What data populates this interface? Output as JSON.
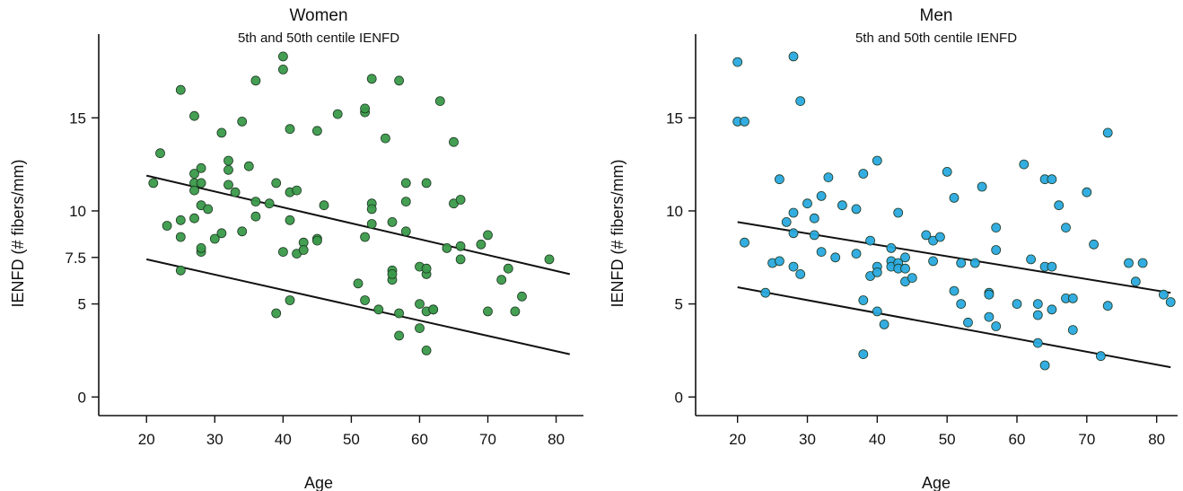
{
  "chart_data": [
    {
      "type": "scatter",
      "title": "Women",
      "subtitle": "5th and 50th centile IENFD",
      "xlabel": "Age",
      "ylabel": "IENFD (# fibers/mm)",
      "xlim": [
        13,
        84
      ],
      "ylim": [
        -1,
        19.5
      ],
      "xticks": [
        20,
        30,
        40,
        50,
        60,
        70,
        80
      ],
      "yticks": [
        0,
        5,
        7.5,
        10,
        15
      ],
      "ytick_labels": [
        "0",
        "5",
        "7.5",
        "10",
        "15"
      ],
      "marker_color": "#3a9a4a",
      "grid": false,
      "points": [
        [
          21,
          11.5
        ],
        [
          22,
          13.1
        ],
        [
          23,
          9.2
        ],
        [
          25,
          9.5
        ],
        [
          25,
          8.6
        ],
        [
          25,
          16.5
        ],
        [
          25,
          6.8
        ],
        [
          27,
          15.1
        ],
        [
          27,
          12.0
        ],
        [
          27,
          11.5
        ],
        [
          27,
          9.6
        ],
        [
          27,
          11.1
        ],
        [
          28,
          7.8
        ],
        [
          28,
          8.0
        ],
        [
          28,
          12.3
        ],
        [
          28,
          11.5
        ],
        [
          28,
          10.3
        ],
        [
          29,
          10.1
        ],
        [
          30,
          8.5
        ],
        [
          31,
          8.8
        ],
        [
          31,
          14.2
        ],
        [
          32,
          12.7
        ],
        [
          32,
          12.2
        ],
        [
          32,
          11.4
        ],
        [
          33,
          11.0
        ],
        [
          34,
          8.9
        ],
        [
          34,
          14.8
        ],
        [
          35,
          12.4
        ],
        [
          36,
          9.7
        ],
        [
          36,
          10.5
        ],
        [
          36,
          17.0
        ],
        [
          38,
          10.4
        ],
        [
          39,
          4.5
        ],
        [
          39,
          11.5
        ],
        [
          40,
          18.3
        ],
        [
          40,
          17.6
        ],
        [
          40,
          7.8
        ],
        [
          41,
          14.4
        ],
        [
          41,
          11.0
        ],
        [
          41,
          9.5
        ],
        [
          41,
          5.2
        ],
        [
          42,
          11.1
        ],
        [
          42,
          7.7
        ],
        [
          43,
          8.3
        ],
        [
          43,
          7.9
        ],
        [
          45,
          8.5
        ],
        [
          45,
          8.4
        ],
        [
          45,
          14.3
        ],
        [
          46,
          10.3
        ],
        [
          48,
          15.2
        ],
        [
          51,
          6.1
        ],
        [
          52,
          15.3
        ],
        [
          52,
          15.5
        ],
        [
          52,
          8.6
        ],
        [
          52,
          5.2
        ],
        [
          53,
          17.1
        ],
        [
          53,
          10.4
        ],
        [
          53,
          10.1
        ],
        [
          53,
          9.3
        ],
        [
          54,
          4.7
        ],
        [
          55,
          13.9
        ],
        [
          56,
          9.4
        ],
        [
          56,
          6.8
        ],
        [
          56,
          6.3
        ],
        [
          56,
          6.6
        ],
        [
          57,
          3.3
        ],
        [
          57,
          4.5
        ],
        [
          57,
          17.0
        ],
        [
          58,
          8.9
        ],
        [
          58,
          11.5
        ],
        [
          58,
          10.5
        ],
        [
          60,
          3.7
        ],
        [
          60,
          5.0
        ],
        [
          60,
          7.0
        ],
        [
          61,
          2.5
        ],
        [
          61,
          6.6
        ],
        [
          61,
          11.5
        ],
        [
          61,
          6.9
        ],
        [
          61,
          4.6
        ],
        [
          62,
          4.7
        ],
        [
          62,
          4.7
        ],
        [
          63,
          15.9
        ],
        [
          64,
          8.0
        ],
        [
          65,
          13.7
        ],
        [
          65,
          10.4
        ],
        [
          66,
          10.6
        ],
        [
          66,
          8.1
        ],
        [
          66,
          7.4
        ],
        [
          69,
          8.2
        ],
        [
          70,
          8.7
        ],
        [
          70,
          4.6
        ],
        [
          72,
          6.3
        ],
        [
          73,
          6.9
        ],
        [
          74,
          4.6
        ],
        [
          75,
          5.4
        ],
        [
          79,
          7.4
        ]
      ],
      "lines": [
        {
          "name": "50th centile",
          "x": [
            20,
            82
          ],
          "y": [
            11.9,
            6.6
          ]
        },
        {
          "name": "5th centile",
          "x": [
            20,
            82
          ],
          "y": [
            7.4,
            2.3
          ]
        }
      ]
    },
    {
      "type": "scatter",
      "title": "Men",
      "subtitle": "5th and 50th centile IENFD",
      "xlabel": "Age",
      "ylabel": "IENFD (# fibers/mm)",
      "xlim": [
        14,
        83
      ],
      "ylim": [
        -1,
        19.5
      ],
      "xticks": [
        20,
        30,
        40,
        50,
        60,
        70,
        80
      ],
      "yticks": [
        0,
        5,
        10,
        15
      ],
      "ytick_labels": [
        "0",
        "5",
        "10",
        "15"
      ],
      "marker_color": "#29a9df",
      "grid": false,
      "points": [
        [
          20,
          18.0
        ],
        [
          20,
          14.8
        ],
        [
          21,
          14.8
        ],
        [
          21,
          8.3
        ],
        [
          24,
          5.6
        ],
        [
          25,
          7.2
        ],
        [
          26,
          7.3
        ],
        [
          26,
          11.7
        ],
        [
          27,
          9.4
        ],
        [
          28,
          18.3
        ],
        [
          28,
          9.9
        ],
        [
          28,
          8.8
        ],
        [
          28,
          7.0
        ],
        [
          29,
          6.6
        ],
        [
          29,
          15.9
        ],
        [
          30,
          10.4
        ],
        [
          31,
          8.7
        ],
        [
          31,
          9.6
        ],
        [
          32,
          10.8
        ],
        [
          32,
          7.8
        ],
        [
          33,
          11.8
        ],
        [
          34,
          7.5
        ],
        [
          35,
          10.3
        ],
        [
          37,
          10.1
        ],
        [
          37,
          7.7
        ],
        [
          38,
          12.0
        ],
        [
          38,
          5.2
        ],
        [
          38,
          2.3
        ],
        [
          39,
          8.4
        ],
        [
          39,
          6.5
        ],
        [
          40,
          12.7
        ],
        [
          40,
          7.0
        ],
        [
          40,
          6.7
        ],
        [
          40,
          4.6
        ],
        [
          41,
          3.9
        ],
        [
          42,
          7.3
        ],
        [
          42,
          7.0
        ],
        [
          42,
          8.0
        ],
        [
          43,
          9.9
        ],
        [
          43,
          7.2
        ],
        [
          43,
          6.9
        ],
        [
          44,
          7.5
        ],
        [
          44,
          6.2
        ],
        [
          44,
          6.9
        ],
        [
          45,
          6.4
        ],
        [
          47,
          8.7
        ],
        [
          48,
          8.4
        ],
        [
          48,
          7.3
        ],
        [
          49,
          8.6
        ],
        [
          50,
          12.1
        ],
        [
          51,
          10.7
        ],
        [
          51,
          5.7
        ],
        [
          52,
          7.2
        ],
        [
          52,
          5.0
        ],
        [
          53,
          4.0
        ],
        [
          54,
          7.2
        ],
        [
          55,
          11.3
        ],
        [
          56,
          5.6
        ],
        [
          56,
          5.5
        ],
        [
          56,
          4.3
        ],
        [
          57,
          3.8
        ],
        [
          57,
          9.1
        ],
        [
          57,
          7.9
        ],
        [
          60,
          5.0
        ],
        [
          61,
          12.5
        ],
        [
          62,
          7.4
        ],
        [
          63,
          2.9
        ],
        [
          63,
          4.4
        ],
        [
          63,
          5.0
        ],
        [
          64,
          11.7
        ],
        [
          64,
          7.0
        ],
        [
          64,
          1.7
        ],
        [
          65,
          7.0
        ],
        [
          65,
          11.7
        ],
        [
          65,
          4.7
        ],
        [
          66,
          10.3
        ],
        [
          67,
          9.1
        ],
        [
          67,
          5.3
        ],
        [
          68,
          5.3
        ],
        [
          68,
          3.6
        ],
        [
          70,
          11.0
        ],
        [
          71,
          8.2
        ],
        [
          72,
          2.2
        ],
        [
          73,
          14.2
        ],
        [
          73,
          4.9
        ],
        [
          76,
          7.2
        ],
        [
          77,
          6.2
        ],
        [
          78,
          7.2
        ],
        [
          81,
          5.5
        ],
        [
          82,
          5.1
        ]
      ],
      "lines": [
        {
          "name": "50th centile",
          "x": [
            20,
            82
          ],
          "y": [
            9.4,
            5.6
          ]
        },
        {
          "name": "5th centile",
          "x": [
            20,
            82
          ],
          "y": [
            5.9,
            1.6
          ]
        }
      ]
    }
  ]
}
